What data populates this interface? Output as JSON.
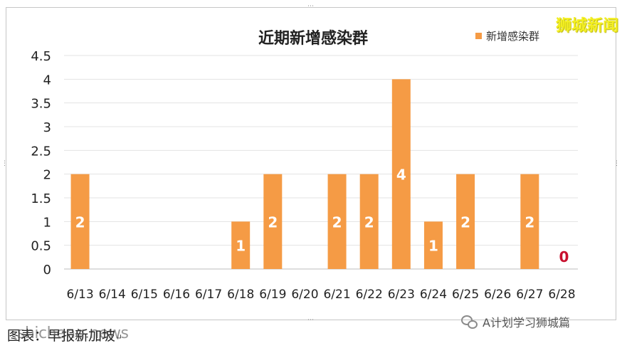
{
  "watermark": "狮城新闻",
  "caption": {
    "text": "图表：早报新加坡",
    "mark": "↵",
    "overlay": "shicheng.news"
  },
  "wechat_source": "A计划学习狮城篇",
  "colors": {
    "bar": "#f59b45",
    "zero_label": "#c8102e",
    "grid": "#e3e3e3"
  },
  "chart_data": {
    "type": "bar",
    "title": "近期新增感染群",
    "legend": {
      "label": "新增感染群",
      "position": "top-right"
    },
    "categories": [
      "6/13",
      "6/14",
      "6/15",
      "6/16",
      "6/17",
      "6/18",
      "6/19",
      "6/20",
      "6/21",
      "6/22",
      "6/23",
      "6/24",
      "6/25",
      "6/26",
      "6/27",
      "6/28"
    ],
    "series": [
      {
        "name": "新增感染群",
        "values": [
          2,
          0,
          0,
          0,
          0,
          1,
          2,
          0,
          2,
          2,
          4,
          1,
          2,
          0,
          2,
          0
        ]
      }
    ],
    "data_labels": [
      "2",
      "",
      "",
      "",
      "",
      "1",
      "2",
      "",
      "2",
      "2",
      "4",
      "1",
      "2",
      "",
      "2",
      "0"
    ],
    "yticks": [
      "0",
      "0.5",
      "1",
      "1.5",
      "2",
      "2.5",
      "3",
      "3.5",
      "4",
      "4.5"
    ],
    "ylim": [
      0,
      4.5
    ],
    "grid": true
  }
}
